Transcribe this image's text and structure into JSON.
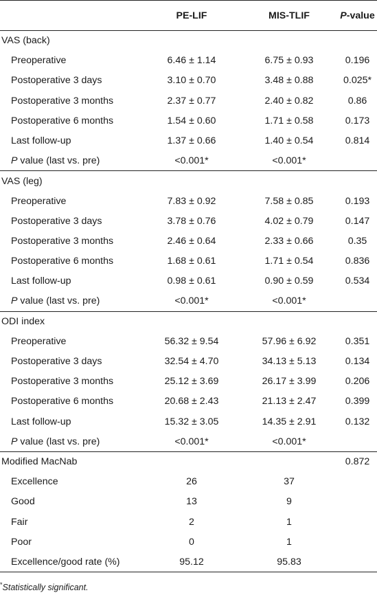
{
  "header": {
    "col1": "",
    "col2": "PE-LIF",
    "col3": "MIS-TLIF",
    "col4_p": "P",
    "col4_rest": "-value"
  },
  "sections": [
    {
      "title": "VAS (back)",
      "p": "",
      "rows": [
        {
          "label": "Preoperative",
          "a": "6.46 ± 1.14",
          "b": "6.75 ± 0.93",
          "p": "0.196"
        },
        {
          "label": "Postoperative 3 days",
          "a": "3.10 ± 0.70",
          "b": "3.48 ± 0.88",
          "p": "0.025*"
        },
        {
          "label": "Postoperative 3 months",
          "a": "2.37 ± 0.77",
          "b": "2.40 ± 0.82",
          "p": "0.86"
        },
        {
          "label": "Postoperative 6 months",
          "a": "1.54 ± 0.60",
          "b": "1.71 ± 0.58",
          "p": "0.173"
        },
        {
          "label": "Last follow-up",
          "a": "1.37 ± 0.66",
          "b": "1.40 ± 0.54",
          "p": "0.814"
        }
      ],
      "pv": {
        "italic": "P",
        "rest": " value (last vs. pre)",
        "a": "<0.001*",
        "b": "<0.001*"
      }
    },
    {
      "title": "VAS (leg)",
      "p": "",
      "rows": [
        {
          "label": "Preoperative",
          "a": "7.83 ± 0.92",
          "b": "7.58 ± 0.85",
          "p": "0.193"
        },
        {
          "label": "Postoperative 3 days",
          "a": "3.78 ± 0.76",
          "b": "4.02 ± 0.79",
          "p": "0.147"
        },
        {
          "label": "Postoperative 3 months",
          "a": "2.46 ± 0.64",
          "b": "2.33 ± 0.66",
          "p": "0.35"
        },
        {
          "label": "Postoperative 6 months",
          "a": "1.68 ± 0.61",
          "b": "1.71 ± 0.54",
          "p": "0.836"
        },
        {
          "label": "Last follow-up",
          "a": "0.98 ± 0.61",
          "b": "0.90 ± 0.59",
          "p": "0.534"
        }
      ],
      "pv": {
        "italic": "P",
        "rest": " value (last vs. pre)",
        "a": "<0.001*",
        "b": "<0.001*"
      }
    },
    {
      "title": "ODI index",
      "p": "",
      "rows": [
        {
          "label": "Preoperative",
          "a": "56.32 ± 9.54",
          "b": "57.96 ± 6.92",
          "p": "0.351"
        },
        {
          "label": "Postoperative 3 days",
          "a": "32.54 ± 4.70",
          "b": "34.13 ± 5.13",
          "p": "0.134"
        },
        {
          "label": "Postoperative 3 months",
          "a": "25.12 ± 3.69",
          "b": "26.17 ± 3.99",
          "p": "0.206"
        },
        {
          "label": "Postoperative 6 months",
          "a": "20.68 ± 2.43",
          "b": "21.13 ± 2.47",
          "p": "0.399"
        },
        {
          "label": "Last follow-up",
          "a": "15.32 ± 3.05",
          "b": "14.35 ± 2.91",
          "p": "0.132"
        }
      ],
      "pv": {
        "italic": "P",
        "rest": " value (last vs. pre)",
        "a": "<0.001*",
        "b": "<0.001*"
      }
    },
    {
      "title": "Modified MacNab",
      "p": "0.872",
      "rows": [
        {
          "label": "Excellence",
          "a": "26",
          "b": "37",
          "p": ""
        },
        {
          "label": "Good",
          "a": "13",
          "b": "9",
          "p": ""
        },
        {
          "label": "Fair",
          "a": "2",
          "b": "1",
          "p": ""
        },
        {
          "label": "Poor",
          "a": "0",
          "b": "1",
          "p": ""
        },
        {
          "label": "Excellence/good rate (%)",
          "a": "95.12",
          "b": "95.83",
          "p": ""
        }
      ],
      "pv": null
    }
  ],
  "footnote": {
    "mark": "*",
    "text": "Statistically significant."
  }
}
